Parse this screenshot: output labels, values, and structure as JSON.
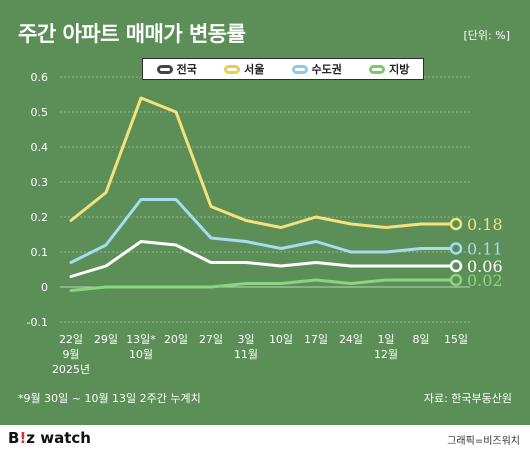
{
  "title": "주간 아파트 매매가 변동률",
  "unit": "[단위: %]",
  "footnote": "*9월 30일 ~ 10월 13일 2주간 누계치",
  "source": "자료: 한국부동산원",
  "logo": {
    "prefix": "B",
    "excl": "!",
    "suffix": "z watch"
  },
  "credit": "그래픽=비즈워치",
  "colors": {
    "background": "#5b8f57",
    "전국": "#ffffff",
    "서울": "#f3e27d",
    "수도권": "#a7dbef",
    "지방": "#8ad67e"
  },
  "chart_data": {
    "type": "line",
    "categories": [
      "22일\n9월\n2025년",
      "29일",
      "13일*\n10월",
      "20일",
      "27일",
      "3일\n11월",
      "10일",
      "17일",
      "24일",
      "1일\n12월",
      "8일",
      "15일"
    ],
    "ylim": [
      -0.1,
      0.6
    ],
    "yticks": [
      "-0.1",
      "0",
      "0.1",
      "0.2",
      "0.3",
      "0.4",
      "0.5",
      "0.6"
    ],
    "grid": true,
    "legend_position": "top-center",
    "series": [
      {
        "name": "전국",
        "color": "#ffffff",
        "values": [
          0.03,
          0.06,
          0.13,
          0.12,
          0.07,
          0.07,
          0.06,
          0.07,
          0.06,
          0.06,
          0.06,
          0.06
        ],
        "end_label": "0.06"
      },
      {
        "name": "서울",
        "color": "#f3e27d",
        "values": [
          0.19,
          0.27,
          0.54,
          0.5,
          0.23,
          0.19,
          0.17,
          0.2,
          0.18,
          0.17,
          0.18,
          0.18
        ],
        "end_label": "0.18"
      },
      {
        "name": "수도권",
        "color": "#a7dbef",
        "values": [
          0.07,
          0.12,
          0.25,
          0.25,
          0.14,
          0.13,
          0.11,
          0.13,
          0.1,
          0.1,
          0.11,
          0.11
        ],
        "end_label": "0.11"
      },
      {
        "name": "지방",
        "color": "#8ad67e",
        "values": [
          -0.01,
          0.0,
          0.0,
          0.0,
          0.0,
          0.01,
          0.01,
          0.02,
          0.01,
          0.02,
          0.02,
          0.02
        ],
        "end_label": "0.02"
      }
    ]
  }
}
